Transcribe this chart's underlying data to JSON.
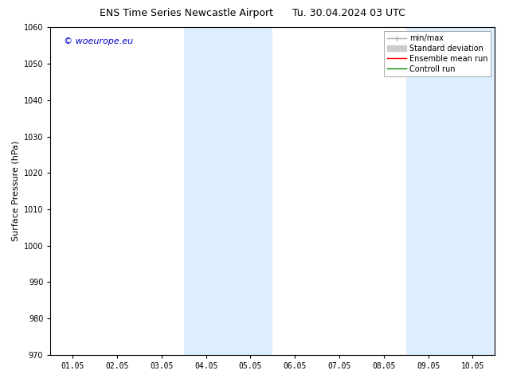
{
  "title_left": "ENS Time Series Newcastle Airport",
  "title_right": "Tu. 30.04.2024 03 UTC",
  "ylabel": "Surface Pressure (hPa)",
  "ylim": [
    970,
    1060
  ],
  "yticks": [
    970,
    980,
    990,
    1000,
    1010,
    1020,
    1030,
    1040,
    1050,
    1060
  ],
  "xtick_labels": [
    "01.05",
    "02.05",
    "03.05",
    "04.05",
    "05.05",
    "06.05",
    "07.05",
    "08.05",
    "09.05",
    "10.05"
  ],
  "xtick_positions": [
    1,
    2,
    3,
    4,
    5,
    6,
    7,
    8,
    9,
    10
  ],
  "xlim": [
    0.5,
    10.5
  ],
  "watermark": "© woeurope.eu",
  "watermark_color": "#0000cc",
  "bg_color": "#ffffff",
  "shaded_regions": [
    {
      "x_start": 3.5,
      "x_end": 4.5,
      "color": "#ddeeff"
    },
    {
      "x_start": 4.5,
      "x_end": 5.5,
      "color": "#ddeeff"
    },
    {
      "x_start": 8.5,
      "x_end": 9.5,
      "color": "#ddeeff"
    },
    {
      "x_start": 9.5,
      "x_end": 10.5,
      "color": "#ddeeff"
    }
  ],
  "legend_items": [
    {
      "label": "min/max",
      "color": "#aaaaaa",
      "lw": 1.0
    },
    {
      "label": "Standard deviation",
      "color": "#cccccc",
      "lw": 6
    },
    {
      "label": "Ensemble mean run",
      "color": "#ff0000",
      "lw": 1.0
    },
    {
      "label": "Controll run",
      "color": "#008800",
      "lw": 1.0
    }
  ],
  "title_fontsize": 9,
  "tick_fontsize": 7,
  "ylabel_fontsize": 8,
  "legend_fontsize": 7
}
